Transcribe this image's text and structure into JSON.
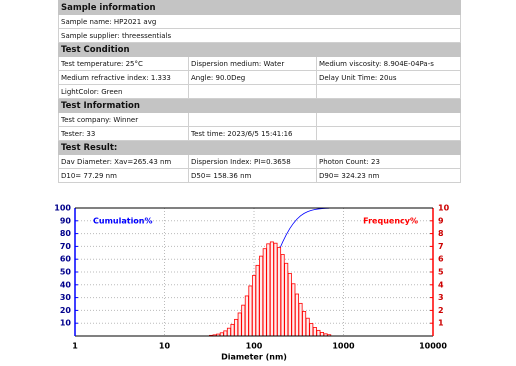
{
  "sections": [
    {
      "title": "Sample information",
      "rows": [
        [
          "Sample name: HP2021 avg"
        ],
        [
          "Sample supplier: threessentials"
        ]
      ]
    },
    {
      "title": "Test Condition",
      "rows": [
        [
          "Test temperature: 25°C",
          "Dispersion medium: Water",
          "Medium viscosity: 8.904E-04Pa-s"
        ],
        [
          "Medium refractive index: 1.333",
          "Angle: 90.0Deg",
          "Delay Unit Time: 20us"
        ],
        [
          "LightColor: Green"
        ]
      ]
    },
    {
      "title": "Test Information",
      "rows": [
        [
          "Test company: Winner"
        ],
        [
          "Tester: 33",
          "Test time: 2023/6/5 15:41:16"
        ]
      ]
    },
    {
      "title": "Test Result:",
      "rows": [
        [
          "Dav Diameter: Xav=265.43 nm",
          "Dispersion Index: PI=0.3658",
          "Photon Count: 23"
        ],
        [
          "D10= 77.29 nm",
          "D50= 158.36 nm",
          "D90= 324.23 nm"
        ]
      ]
    }
  ],
  "chart_data": {
    "type": "bar",
    "xlabel": "Diameter (nm)",
    "xscale": "log",
    "x": [
      33.1,
      36.3,
      39.8,
      43.7,
      47.9,
      52.5,
      57.5,
      63.1,
      69.2,
      75.9,
      83.2,
      91.2,
      100,
      109.6,
      120.2,
      131.8,
      144.5,
      158.5,
      173.8,
      190.5,
      208.9,
      229.1,
      251.2,
      275.4,
      302.0,
      331.1,
      363.1,
      398.1,
      436.5,
      478.6,
      524.8,
      575.4,
      631.0,
      691.8
    ],
    "series": [
      {
        "name": "Cumulation%",
        "color": "#0000ff",
        "type": "line",
        "values": [
          0.05,
          0.14,
          0.29,
          0.54,
          0.94,
          1.55,
          2.46,
          3.76,
          5.56,
          7.97,
          11.1,
          15.01,
          19.73,
          25.25,
          31.49,
          38.31,
          45.51,
          52.86,
          60.11,
          67.02,
          73.39,
          79.07,
          83.96,
          88.04,
          91.32,
          93.87,
          95.79,
          97.18,
          98.16,
          98.83,
          99.27,
          99.55,
          99.72,
          99.82
        ]
      },
      {
        "name": "Frequency%",
        "color": "#ff0000",
        "axis": "y2",
        "values": [
          0.05,
          0.09,
          0.15,
          0.25,
          0.4,
          0.61,
          0.91,
          1.3,
          1.8,
          2.41,
          3.13,
          3.91,
          4.72,
          5.52,
          6.24,
          6.82,
          7.2,
          7.35,
          7.25,
          6.91,
          6.37,
          5.68,
          4.89,
          4.08,
          3.28,
          2.55,
          1.92,
          1.39,
          0.98,
          0.67,
          0.44,
          0.28,
          0.17,
          0.1
        ]
      }
    ],
    "xlim": [
      1,
      10000
    ],
    "xticks": [
      1,
      10,
      100,
      1000,
      10000
    ],
    "ylim": [
      0,
      100
    ],
    "yticks": [
      10,
      20,
      30,
      40,
      50,
      60,
      70,
      80,
      90,
      100
    ],
    "y2lim": [
      0,
      10
    ],
    "y2ticks": [
      1,
      2,
      3,
      4,
      5,
      6,
      7,
      8,
      9,
      10
    ],
    "grid": true
  }
}
